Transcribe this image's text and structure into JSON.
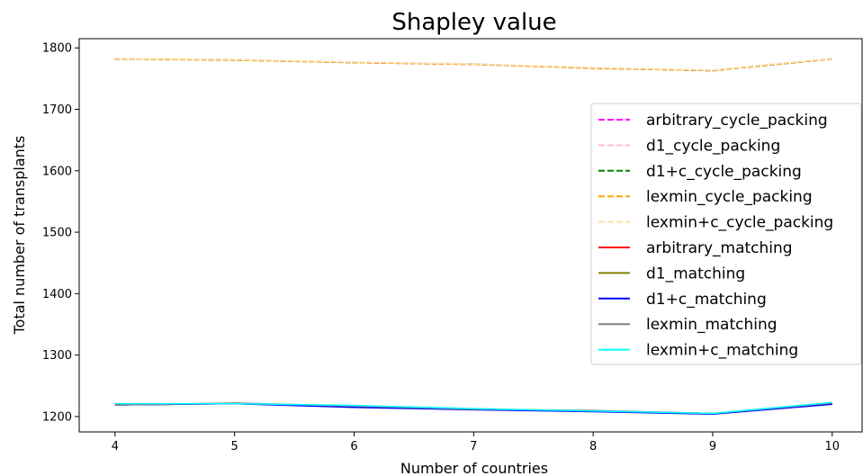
{
  "chart_data": {
    "type": "line",
    "title": "Shapley value",
    "xlabel": "Number of countries",
    "ylabel": "Total number of transplants",
    "x": [
      4,
      5,
      6,
      7,
      8,
      9,
      10
    ],
    "xlim": [
      3.7,
      10.25
    ],
    "ylim": [
      1175,
      1815
    ],
    "xticks": [
      "4",
      "5",
      "6",
      "7",
      "8",
      "9",
      "10"
    ],
    "yticks": [
      "1200",
      "1300",
      "1400",
      "1500",
      "1600",
      "1700",
      "1800"
    ],
    "grid": false,
    "legend_position": "center-right",
    "series": [
      {
        "name": "arbitrary_cycle_packing",
        "color": "#ff00ff",
        "style": "dashed",
        "values": [
          1782,
          1781,
          1776,
          1773,
          1767,
          1763,
          1782
        ]
      },
      {
        "name": "d1_cycle_packing",
        "color": "#ffc0cb",
        "style": "dashed",
        "values": [
          1782,
          1781,
          1777,
          1774,
          1766,
          1764,
          1783
        ]
      },
      {
        "name": "d1+c_cycle_packing",
        "color": "#008000",
        "style": "dashed",
        "values": [
          1782,
          1780,
          1776,
          1774,
          1767,
          1763,
          1782
        ]
      },
      {
        "name": "lexmin_cycle_packing",
        "color": "#ffa500",
        "style": "dashed",
        "values": [
          1782,
          1780,
          1776,
          1773,
          1767,
          1763,
          1782
        ]
      },
      {
        "name": "lexmin+c_cycle_packing",
        "color": "#ffdead",
        "style": "dashed",
        "values": [
          1783,
          1781,
          1777,
          1774,
          1768,
          1764,
          1783
        ]
      },
      {
        "name": "arbitrary_matching",
        "color": "#ff0000",
        "style": "solid",
        "values": [
          1219,
          1221,
          1216,
          1212,
          1209,
          1205,
          1221
        ]
      },
      {
        "name": "d1_matching",
        "color": "#808000",
        "style": "solid",
        "values": [
          1219,
          1221,
          1216,
          1212,
          1209,
          1205,
          1221
        ]
      },
      {
        "name": "d1+c_matching",
        "color": "#0000ff",
        "style": "solid",
        "values": [
          1219,
          1221,
          1215,
          1211,
          1208,
          1204,
          1220
        ]
      },
      {
        "name": "lexmin_matching",
        "color": "#808080",
        "style": "solid",
        "values": [
          1219,
          1222,
          1217,
          1212,
          1210,
          1205,
          1222
        ]
      },
      {
        "name": "lexmin+c_matching",
        "color": "#00ffff",
        "style": "solid",
        "values": [
          1221,
          1221,
          1218,
          1213,
          1209,
          1205,
          1223
        ]
      }
    ]
  }
}
